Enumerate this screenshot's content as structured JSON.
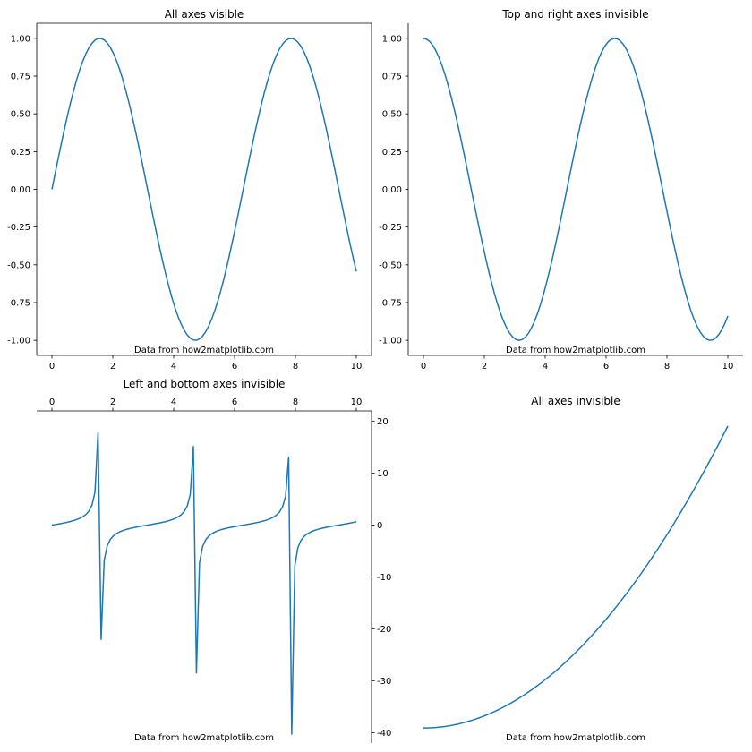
{
  "figure": {
    "background": "#ffffff",
    "line_color": "#1f77b4"
  },
  "chart_data": [
    {
      "type": "line",
      "title": "All axes visible",
      "function": "sin(x)",
      "x_range": [
        0,
        10
      ],
      "xlim": [
        -0.5,
        10.5
      ],
      "ylim": [
        -1.1,
        1.1
      ],
      "x_ticks": [
        0,
        2,
        4,
        6,
        8,
        10
      ],
      "y_ticks": [
        -1.0,
        -0.75,
        -0.5,
        -0.25,
        0.0,
        0.25,
        0.5,
        0.75,
        1.0
      ],
      "x_tick_labels": [
        "0",
        "2",
        "4",
        "6",
        "8",
        "10"
      ],
      "y_tick_labels": [
        "-1.00",
        "-0.75",
        "-0.50",
        "-0.25",
        "0.00",
        "0.25",
        "0.50",
        "0.75",
        "1.00"
      ],
      "spines": {
        "top": true,
        "right": true,
        "bottom": true,
        "left": true
      },
      "x_axis_position": "bottom",
      "y_axis_position": "left",
      "annotation": "Data from how2matplotlib.com",
      "grid": false
    },
    {
      "type": "line",
      "title": "Top and right axes invisible",
      "function": "cos(x)",
      "x_range": [
        0,
        10
      ],
      "xlim": [
        -0.5,
        10.5
      ],
      "ylim": [
        -1.1,
        1.1
      ],
      "x_ticks": [
        0,
        2,
        4,
        6,
        8,
        10
      ],
      "y_ticks": [
        -1.0,
        -0.75,
        -0.5,
        -0.25,
        0.0,
        0.25,
        0.5,
        0.75,
        1.0
      ],
      "x_tick_labels": [
        "0",
        "2",
        "4",
        "6",
        "8",
        "10"
      ],
      "y_tick_labels": [
        "-1.00",
        "-0.75",
        "-0.50",
        "-0.25",
        "0.00",
        "0.25",
        "0.50",
        "0.75",
        "1.00"
      ],
      "spines": {
        "top": false,
        "right": false,
        "bottom": true,
        "left": true
      },
      "x_axis_position": "bottom",
      "y_axis_position": "left",
      "annotation": "Data from how2matplotlib.com",
      "grid": false
    },
    {
      "type": "line",
      "title": "Left and bottom axes invisible",
      "function": "tan(x)",
      "x_range": [
        0,
        10
      ],
      "xlim": [
        -0.5,
        10.5
      ],
      "ylim": [
        -42,
        22
      ],
      "x_ticks": [
        0,
        2,
        4,
        6,
        8,
        10
      ],
      "y_ticks": [
        -40,
        -30,
        -20,
        -10,
        0,
        10,
        20
      ],
      "x_tick_labels": [
        "0",
        "2",
        "4",
        "6",
        "8",
        "10"
      ],
      "y_tick_labels": [
        "-40",
        "-30",
        "-20",
        "-10",
        "0",
        "10",
        "20"
      ],
      "spines": {
        "top": true,
        "right": true,
        "bottom": false,
        "left": false
      },
      "x_axis_position": "top",
      "y_axis_position": "right",
      "annotation": "Data from how2matplotlib.com",
      "grid": false
    },
    {
      "type": "line",
      "title": "All axes invisible",
      "function": "x^2",
      "x_range": [
        0,
        10
      ],
      "xlim": [
        -0.5,
        10.5
      ],
      "ylim": [
        -5,
        105
      ],
      "x_ticks": [],
      "y_ticks": [],
      "x_tick_labels": [],
      "y_tick_labels": [],
      "spines": {
        "top": false,
        "right": false,
        "bottom": false,
        "left": false
      },
      "x_axis_position": "none",
      "y_axis_position": "none",
      "annotation": "Data from how2matplotlib.com",
      "grid": false
    }
  ]
}
